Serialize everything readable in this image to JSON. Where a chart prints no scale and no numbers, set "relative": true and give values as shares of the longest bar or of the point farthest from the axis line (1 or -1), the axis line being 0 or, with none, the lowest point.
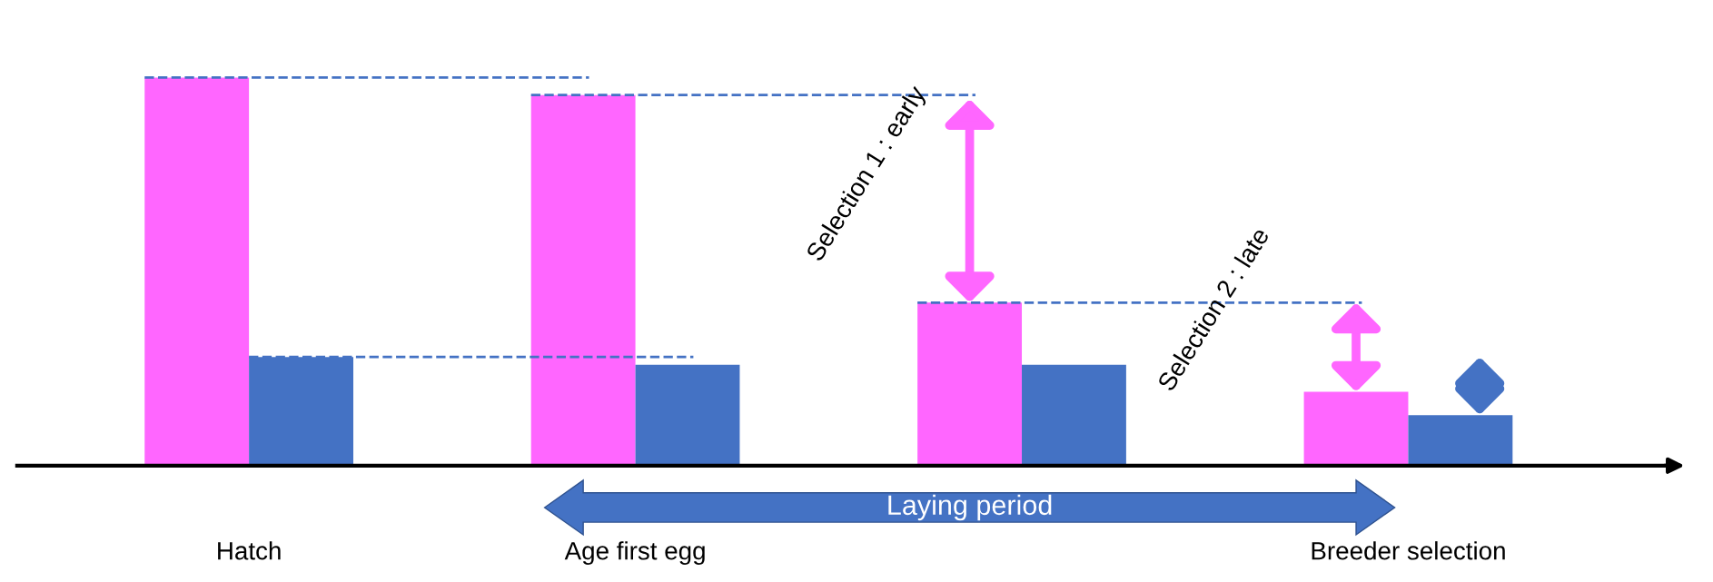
{
  "chart_data": {
    "type": "bar",
    "relative": true,
    "categories": [
      "Hatch",
      "Age first egg",
      null,
      "Breeder selection"
    ],
    "series": [
      {
        "color": "#ff66ff",
        "values": [
          1,
          0.955,
          0.42,
          0.19
        ]
      },
      {
        "color": "#4472c4",
        "values": [
          0.28,
          0.26,
          0.26,
          0.13
        ]
      }
    ],
    "ref_lines": [
      {
        "axis": "y",
        "value": 1,
        "color": "#4472c4",
        "line_style": "dashed"
      },
      {
        "axis": "y",
        "value": 0.955,
        "color": "#4472c4",
        "line_style": "dashed"
      },
      {
        "axis": "y",
        "value": 0.42,
        "color": "#4472c4",
        "line_style": "dashed"
      },
      {
        "axis": "y",
        "value": 0.28,
        "color": "#4472c4",
        "line_style": "dashed"
      }
    ],
    "annotations": [
      "Selection 1 : early",
      "Selection 2 : late",
      "Laying period"
    ],
    "grid": false,
    "legend": false
  }
}
